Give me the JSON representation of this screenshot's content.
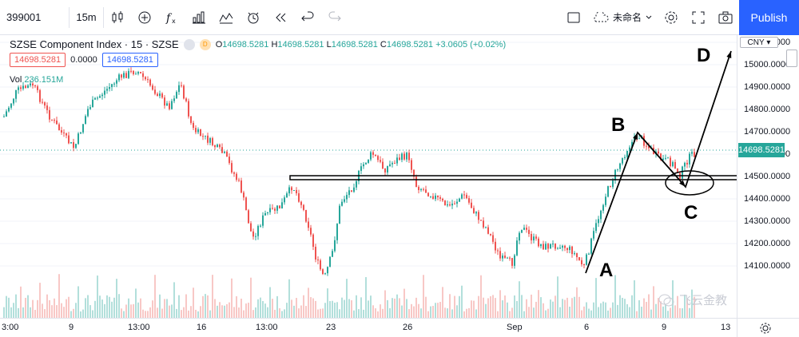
{
  "toolbar": {
    "symbol": "399001",
    "interval": "15m",
    "layout_name": "未命名",
    "publish_label": "Publish"
  },
  "legend": {
    "title": "SZSE Component Index · 15 · SZSE",
    "badge": "D",
    "open_label": "O",
    "open": "14698.5281",
    "high_label": "H",
    "high": "14698.5281",
    "low_label": "L",
    "low": "14698.5281",
    "close_label": "C",
    "close": "14698.5281",
    "change": "+3.0605 (+0.02%)"
  },
  "price_boxes": {
    "left": "14698.5281",
    "mid": "0.0000",
    "right": "14698.5281"
  },
  "volume": {
    "label": "Vol",
    "value": "236.151M"
  },
  "price_scale": {
    "currency": "CNY",
    "labels": [
      "15100.0000",
      "15000.0000",
      "14900.0000",
      "14800.0000",
      "14700.0000",
      "14600.0000",
      "14500.0000",
      "14400.0000",
      "14300.0000",
      "14200.0000",
      "14100.0000"
    ],
    "current_price": "14698.5281"
  },
  "time_scale": {
    "labels": [
      "3:00",
      "9",
      "13:00",
      "16",
      "13:00",
      "23",
      "26",
      "Sep",
      "6",
      "9",
      "13"
    ]
  },
  "annotations": {
    "a": "A",
    "b": "B",
    "c": "C",
    "d": "D"
  },
  "watermark": "飞云金教",
  "colors": {
    "up": "#26a69a",
    "down": "#ef5350",
    "accent": "#2962ff"
  }
}
